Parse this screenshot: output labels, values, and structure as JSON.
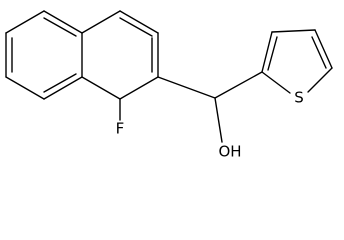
{
  "atoms": [
    {
      "label": "F"
    },
    {
      "label": "OH"
    },
    {
      "label": "S"
    }
  ]
}
